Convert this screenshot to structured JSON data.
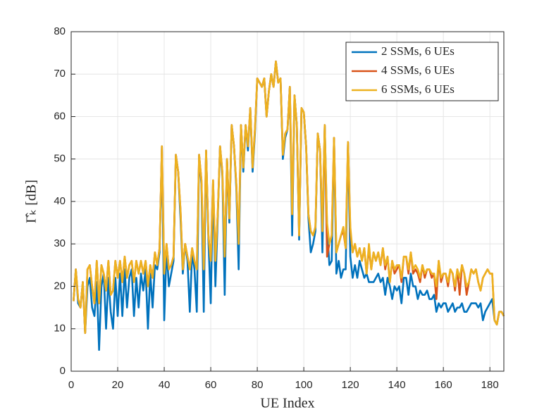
{
  "chart_data": {
    "type": "line",
    "xlabel": "UE Index",
    "ylabel": "Γ̂ₖ [dB]",
    "xlim": [
      0,
      186
    ],
    "xticks": [
      0,
      20,
      40,
      60,
      80,
      100,
      120,
      140,
      160,
      180
    ],
    "ylim": [
      0,
      80
    ],
    "yticks": [
      0,
      10,
      20,
      30,
      40,
      50,
      60,
      70,
      80
    ],
    "grid": true,
    "legend": "upper right",
    "x": [
      1,
      2,
      3,
      4,
      5,
      6,
      7,
      8,
      9,
      10,
      11,
      12,
      13,
      14,
      15,
      16,
      17,
      18,
      19,
      20,
      21,
      22,
      23,
      24,
      25,
      26,
      27,
      28,
      29,
      30,
      31,
      32,
      33,
      34,
      35,
      36,
      37,
      38,
      39,
      40,
      41,
      42,
      43,
      44,
      45,
      46,
      47,
      48,
      49,
      50,
      51,
      52,
      53,
      54,
      55,
      56,
      57,
      58,
      59,
      60,
      61,
      62,
      63,
      64,
      65,
      66,
      67,
      68,
      69,
      70,
      71,
      72,
      73,
      74,
      75,
      76,
      77,
      78,
      79,
      80,
      81,
      82,
      83,
      84,
      85,
      86,
      87,
      88,
      89,
      90,
      91,
      92,
      93,
      94,
      95,
      96,
      97,
      98,
      99,
      100,
      101,
      102,
      103,
      104,
      105,
      106,
      107,
      108,
      109,
      110,
      111,
      112,
      113,
      114,
      115,
      116,
      117,
      118,
      119,
      120,
      121,
      122,
      123,
      124,
      125,
      126,
      127,
      128,
      129,
      130,
      131,
      132,
      133,
      134,
      135,
      136,
      137,
      138,
      139,
      140,
      141,
      142,
      143,
      144,
      145,
      146,
      147,
      148,
      149,
      150,
      151,
      152,
      153,
      154,
      155,
      156,
      157,
      158,
      159,
      160,
      161,
      162,
      163,
      164,
      165,
      166,
      167,
      168,
      169,
      170,
      171,
      172,
      173,
      174,
      175,
      176,
      177,
      178,
      179,
      180,
      181,
      182,
      183,
      184,
      185,
      186
    ],
    "series": [
      {
        "name": "2 SSMs, 6 UEs",
        "color": "#0072bd",
        "values": [
          16.5,
          24,
          16,
          15,
          21,
          9,
          20,
          22,
          15,
          13,
          21,
          5,
          20,
          23,
          10,
          22,
          14,
          10,
          22,
          13,
          23,
          13,
          24,
          15,
          22,
          24,
          13,
          22,
          15,
          23,
          19,
          24,
          10,
          23,
          15,
          25,
          24,
          28,
          53,
          12,
          29,
          20,
          23,
          26,
          51,
          47,
          36,
          23,
          30,
          26,
          14,
          28,
          24,
          14,
          51,
          44,
          14,
          52,
          31,
          16,
          44,
          20,
          36,
          53,
          46,
          18,
          50,
          35,
          58,
          53,
          43,
          24,
          58,
          47,
          58,
          52,
          62,
          47,
          56,
          69,
          68,
          67,
          69,
          60,
          66,
          70,
          67,
          73,
          68,
          69,
          50,
          55,
          57,
          67,
          32,
          65,
          58,
          31,
          62,
          61,
          53,
          36,
          28,
          30,
          33,
          56,
          52,
          28,
          58,
          34,
          25,
          26,
          55,
          23,
          26,
          22,
          24,
          24,
          54,
          27,
          22,
          25,
          22,
          26,
          24,
          22,
          23,
          21,
          21,
          21,
          22,
          23,
          21,
          22,
          18,
          22,
          20,
          17,
          20,
          19,
          20,
          16,
          22,
          22,
          18,
          23,
          20,
          20,
          17,
          19,
          18,
          18,
          19,
          17,
          17,
          18,
          14,
          16,
          15,
          16,
          16,
          14,
          15,
          16,
          14,
          15,
          15,
          16,
          14,
          14,
          15,
          16,
          16,
          16,
          15,
          16,
          12,
          14,
          15,
          16,
          17,
          12,
          11,
          14,
          14,
          13
        ]
      },
      {
        "name": "4 SSMs, 6 UEs",
        "color": "#d95319",
        "values": [
          16.5,
          24,
          17,
          15,
          21,
          9,
          24,
          25,
          20,
          16,
          26,
          16,
          25,
          23,
          19,
          26,
          18,
          19,
          26,
          22,
          26,
          21,
          27,
          22,
          25,
          26,
          21,
          26,
          23,
          26,
          23,
          26,
          20,
          25,
          22,
          28,
          25,
          29,
          53,
          23,
          30,
          24,
          25,
          27,
          51,
          47,
          38,
          24,
          30,
          27,
          24,
          29,
          26,
          24,
          51,
          45,
          24,
          52,
          32,
          26,
          45,
          26,
          37,
          53,
          47,
          27,
          50,
          36,
          58,
          53,
          44,
          30,
          58,
          48,
          58,
          53,
          62,
          48,
          57,
          69,
          68,
          67,
          69,
          60,
          66,
          70,
          67,
          73,
          68,
          69,
          51,
          56,
          57,
          67,
          37,
          65,
          58,
          32,
          62,
          61,
          53,
          37,
          33,
          32,
          34,
          56,
          52,
          33,
          58,
          27,
          30,
          32,
          55,
          28,
          30,
          32,
          33,
          29,
          54,
          33,
          28,
          30,
          27,
          29,
          26,
          29,
          23,
          29,
          24,
          28,
          26,
          28,
          25,
          29,
          24,
          27,
          21,
          26,
          23,
          24,
          25,
          21,
          27,
          27,
          23,
          28,
          23,
          24,
          23,
          21,
          25,
          22,
          24,
          24,
          22,
          23,
          17,
          26,
          21,
          23,
          23,
          20,
          24,
          23,
          19,
          24,
          18,
          25,
          23,
          18,
          21,
          24,
          23,
          24,
          21,
          19,
          22,
          23,
          24,
          23,
          23,
          12,
          11,
          14,
          14,
          13
        ]
      },
      {
        "name": "6 SSMs, 6 UEs",
        "color": "#edb120",
        "values": [
          16.5,
          24,
          17,
          15,
          21,
          9,
          24,
          25,
          20,
          16,
          26,
          16,
          25,
          23,
          19,
          26,
          18,
          19,
          26,
          22,
          26,
          21,
          27,
          22,
          25,
          26,
          21,
          26,
          23,
          26,
          23,
          26,
          20,
          25,
          22,
          28,
          25,
          29,
          53,
          23,
          30,
          24,
          25,
          27,
          51,
          47,
          38,
          24,
          30,
          27,
          24,
          29,
          26,
          24,
          51,
          45,
          24,
          52,
          32,
          26,
          45,
          26,
          37,
          53,
          47,
          27,
          50,
          36,
          58,
          53,
          44,
          30,
          58,
          48,
          58,
          53,
          62,
          48,
          57,
          69,
          68,
          67,
          69,
          60,
          66,
          70,
          67,
          73,
          68,
          69,
          51,
          56,
          57,
          67,
          37,
          65,
          58,
          32,
          62,
          61,
          53,
          37,
          33,
          32,
          34,
          56,
          52,
          33,
          58,
          35,
          30,
          32,
          55,
          28,
          30,
          32,
          34,
          29,
          54,
          34,
          28,
          30,
          27,
          29,
          26,
          29,
          23,
          30,
          24,
          28,
          26,
          28,
          25,
          29,
          25,
          27,
          21,
          26,
          24,
          25,
          25,
          22,
          27,
          27,
          24,
          28,
          24,
          25,
          24,
          22,
          25,
          23,
          24,
          24,
          23,
          23,
          20,
          26,
          22,
          23,
          23,
          21,
          24,
          23,
          20,
          24,
          22,
          25,
          23,
          20,
          21,
          24,
          23,
          24,
          21,
          19,
          22,
          23,
          24,
          23,
          23,
          12,
          11,
          14,
          14,
          13
        ]
      }
    ]
  }
}
